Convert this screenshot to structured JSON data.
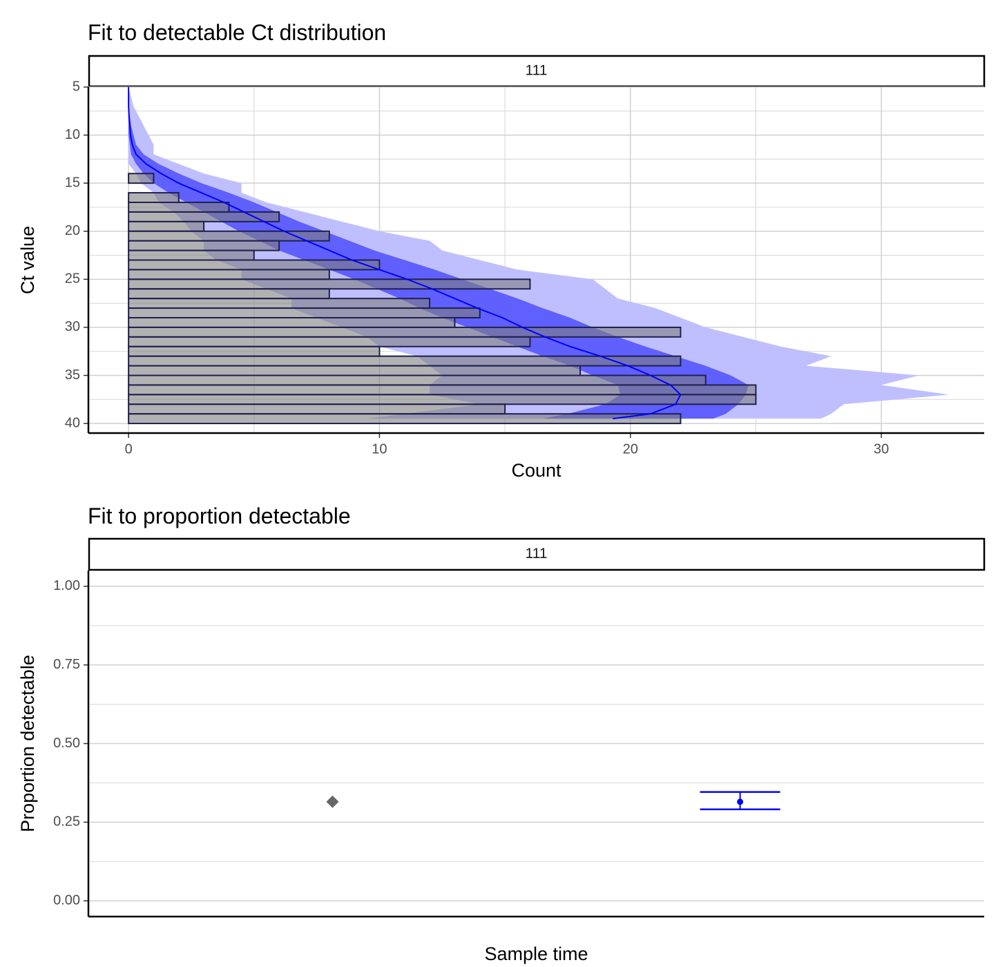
{
  "chart_data": [
    {
      "type": "histogram",
      "orientation": "horizontal",
      "title": "Fit to detectable Ct distribution",
      "strip": "111",
      "xlabel": "Count",
      "ylabel": "Ct value",
      "y_reversed": true,
      "xlim": [
        -1.6,
        34.1
      ],
      "xticks": [
        0,
        10,
        20,
        30
      ],
      "x_minor_grid": [
        5,
        15,
        25
      ],
      "ylim": [
        5,
        41
      ],
      "yticks": [
        5,
        10,
        15,
        20,
        25,
        30,
        35,
        40
      ],
      "y_minor_grid": [
        7.5,
        12.5,
        17.5,
        22.5,
        27.5,
        32.5,
        37.5
      ],
      "grid": true,
      "bins": [
        14,
        15,
        16,
        17,
        18,
        19,
        20,
        21,
        22,
        23,
        24,
        25,
        26,
        27,
        28,
        29,
        30,
        31,
        32,
        33,
        34,
        35,
        36,
        37,
        38,
        39,
        40
      ],
      "counts": [
        1,
        0,
        2,
        4,
        6,
        3,
        8,
        6,
        5,
        10,
        8,
        16,
        8,
        12,
        14,
        13,
        22,
        16,
        10,
        22,
        18,
        23,
        25,
        25,
        15,
        22
      ],
      "bar_color": "#7f7f7f",
      "bar_edge_color": "#1f1f4f",
      "ct": [
        5,
        6,
        7,
        8,
        9,
        10,
        11,
        12,
        13,
        14,
        15,
        16,
        17,
        18,
        19,
        20,
        21,
        22,
        23,
        24,
        25,
        26,
        27,
        28,
        29,
        30,
        31,
        32,
        33,
        34,
        35,
        36,
        37,
        38,
        39,
        39.5
      ],
      "bands": [
        {
          "color": "#bfbfff",
          "lower": [
            0,
            0,
            0,
            0,
            0,
            0,
            0,
            0,
            0,
            0.3,
            0.5,
            1.0,
            1.2,
            1.8,
            2.2,
            2.5,
            3.0,
            3.0,
            3.5,
            4.5,
            4.5,
            5.5,
            6.5,
            6.5,
            7.5,
            8.5,
            9.5,
            10.0,
            11.5,
            12.0,
            12.5,
            12.0,
            12.0,
            14.0,
            11.0,
            9.5
          ],
          "upper": [
            0,
            0.1,
            0.2,
            0.4,
            0.6,
            0.8,
            1.0,
            1.0,
            2.0,
            3.0,
            4.5,
            4.5,
            5.5,
            7.0,
            8.5,
            10.0,
            12.0,
            12.5,
            14.0,
            15.5,
            18.5,
            19.0,
            19.5,
            21.0,
            22.0,
            23.0,
            24.5,
            26.0,
            28.0,
            27.0,
            31.5,
            30.0,
            32.7,
            28.5,
            28.0,
            27.6
          ]
        },
        {
          "color": "#6060ff",
          "lower": [
            0,
            0,
            0,
            0,
            0,
            0,
            0.05,
            0.1,
            0.3,
            0.6,
            1.0,
            1.6,
            2.3,
            3.0,
            3.7,
            4.4,
            5.2,
            6.0,
            7.0,
            8.0,
            9.0,
            9.9,
            10.8,
            11.6,
            12.5,
            13.5,
            14.5,
            15.5,
            16.5,
            17.6,
            18.5,
            19.5,
            19.6,
            19.0,
            17.5,
            16.5
          ],
          "upper": [
            0,
            0,
            0,
            0.05,
            0.1,
            0.2,
            0.3,
            0.6,
            1.2,
            2.0,
            2.9,
            4.0,
            5.0,
            5.9,
            6.8,
            7.8,
            8.8,
            9.8,
            11.0,
            12.2,
            13.3,
            14.4,
            15.5,
            16.5,
            17.6,
            18.5,
            19.5,
            20.6,
            21.8,
            23.0,
            24.0,
            24.7,
            24.6,
            24.3,
            23.8,
            23.3
          ]
        }
      ],
      "median": {
        "color": "#0000ff",
        "values": [
          0,
          0,
          0,
          0.02,
          0.05,
          0.08,
          0.15,
          0.3,
          0.7,
          1.3,
          2.0,
          2.9,
          3.8,
          4.6,
          5.4,
          6.2,
          7.1,
          8.0,
          8.9,
          10.0,
          11.1,
          12.1,
          13.0,
          13.9,
          14.9,
          15.7,
          16.6,
          17.6,
          18.8,
          19.9,
          20.8,
          21.6,
          22.0,
          21.8,
          20.8,
          19.3
        ]
      }
    },
    {
      "type": "pointrange",
      "title": "Fit to proportion detectable",
      "strip": "111",
      "xlabel": "Sample time",
      "ylabel": "Proportion detectable",
      "xlim": [
        0.4,
        1.6
      ],
      "ylim": [
        -0.05,
        1.05
      ],
      "yticks": [
        {
          "value": 0,
          "label": "0.00"
        },
        {
          "value": 0.25,
          "label": "0.25"
        },
        {
          "value": 0.5,
          "label": "0.50"
        },
        {
          "value": 0.75,
          "label": "0.75"
        },
        {
          "value": 1,
          "label": "1.00"
        }
      ],
      "y_minor_grid": [
        0.125,
        0.375,
        0.625,
        0.875
      ],
      "grid": true,
      "series": [
        {
          "shape": "diamond",
          "color": "#666666",
          "x": [
            0.727
          ],
          "values": [
            0.315
          ]
        },
        {
          "shape": "errorbar",
          "color": "#0000ff",
          "x": [
            1.273
          ],
          "values": [
            0.315
          ],
          "lower": [
            0.291
          ],
          "upper": [
            0.346
          ]
        }
      ]
    }
  ]
}
